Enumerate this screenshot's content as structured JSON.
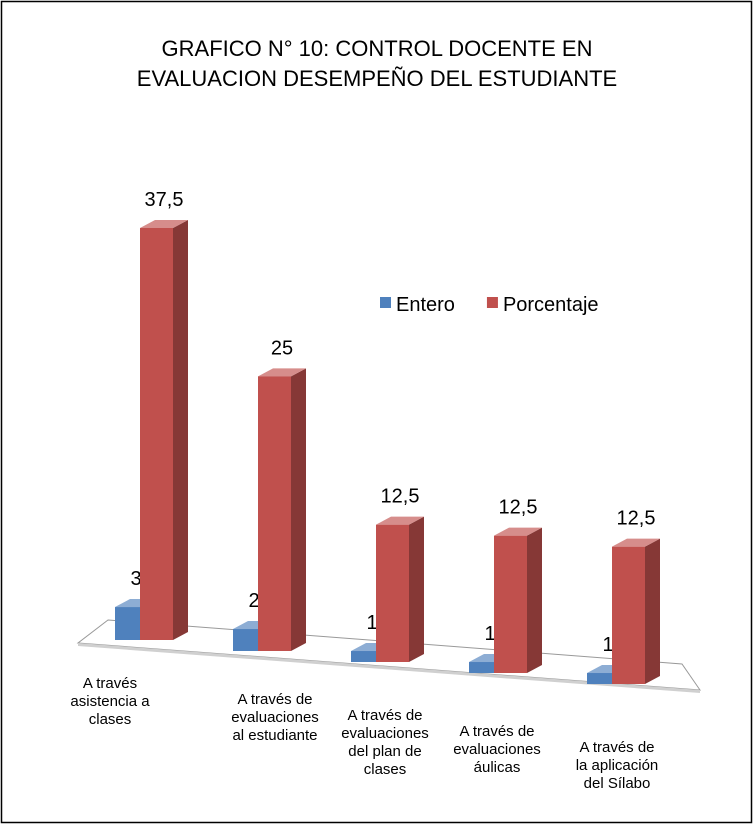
{
  "chart_data": {
    "type": "bar3d",
    "title": "GRAFICO N° 10: CONTROL DOCENTE EN\nEVALUACION DESEMPEÑO DEL ESTUDIANTE",
    "categories": [
      "A través\nasistencia a\nclases",
      "A través de\nevaluaciones\nal estudiante",
      "A través de\nevaluaciones\ndel plan de\nclases",
      "A través de\nevaluaciones\náulicas",
      "A través de\nla aplicación\ndel Sílabo"
    ],
    "series": [
      {
        "name": "Entero",
        "color": "#4f81bd",
        "values": [
          3,
          2,
          1,
          1,
          1
        ]
      },
      {
        "name": "Porcentaje",
        "color": "#c0504d",
        "values": [
          37.5,
          25,
          12.5,
          12.5,
          12.5
        ],
        "value_labels": [
          "37,5",
          "25",
          "12,5",
          "12,5",
          "12,5"
        ]
      }
    ],
    "legend": "right"
  }
}
